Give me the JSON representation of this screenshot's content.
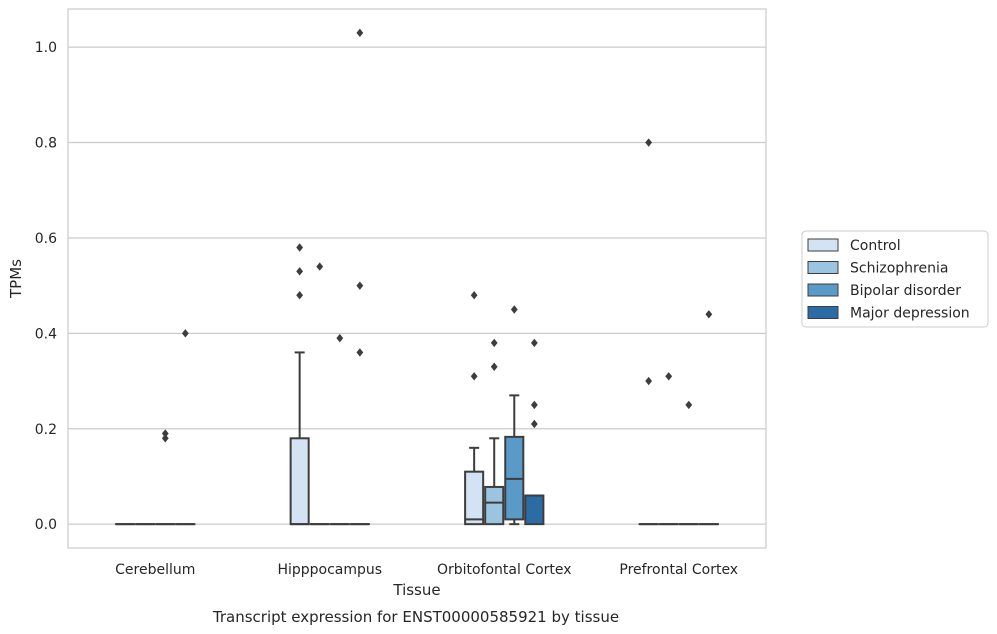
{
  "chart_data": {
    "type": "box",
    "caption": "Transcript expression for ENST00000585921 by tissue",
    "xlabel": "Tissue",
    "ylabel": "TPMs",
    "ylim": [
      -0.05,
      1.08
    ],
    "yticks": [
      0.0,
      0.2,
      0.4,
      0.6,
      0.8,
      1.0
    ],
    "ytick_labels": [
      "0.0",
      "0.2",
      "0.4",
      "0.6",
      "0.8",
      "1.0"
    ],
    "grid": "horizontal",
    "legend_position": "right",
    "categories": [
      "Cerebellum",
      "Hipppocampus",
      "Orbitofontal Cortex",
      "Prefrontal Cortex"
    ],
    "series": [
      {
        "name": "Control",
        "color": "#d4e3f3",
        "boxes": [
          {
            "category": "Cerebellum",
            "q1": 0.0,
            "median": 0.0,
            "q3": 0.0,
            "whislo": 0.0,
            "whishi": 0.0,
            "fliers": []
          },
          {
            "category": "Hipppocampus",
            "q1": 0.0,
            "median": 0.0,
            "q3": 0.18,
            "whislo": 0.0,
            "whishi": 0.36,
            "fliers": [
              0.58,
              0.53,
              0.48
            ]
          },
          {
            "category": "Orbitofontal Cortex",
            "q1": 0.0,
            "median": 0.01,
            "q3": 0.11,
            "whislo": 0.0,
            "whishi": 0.16,
            "fliers": [
              0.48,
              0.31
            ]
          },
          {
            "category": "Prefrontal Cortex",
            "q1": 0.0,
            "median": 0.0,
            "q3": 0.0,
            "whislo": 0.0,
            "whishi": 0.0,
            "fliers": [
              0.8,
              0.3
            ]
          }
        ]
      },
      {
        "name": "Schizophrenia",
        "color": "#9bc4e1",
        "boxes": [
          {
            "category": "Cerebellum",
            "q1": 0.0,
            "median": 0.0,
            "q3": 0.0,
            "whislo": 0.0,
            "whishi": 0.0,
            "fliers": []
          },
          {
            "category": "Hipppocampus",
            "q1": 0.0,
            "median": 0.0,
            "q3": 0.0,
            "whislo": 0.0,
            "whishi": 0.0,
            "fliers": [
              0.54
            ]
          },
          {
            "category": "Orbitofontal Cortex",
            "q1": 0.0,
            "median": 0.045,
            "q3": 0.078,
            "whislo": 0.0,
            "whishi": 0.18,
            "fliers": [
              0.38,
              0.33
            ]
          },
          {
            "category": "Prefrontal Cortex",
            "q1": 0.0,
            "median": 0.0,
            "q3": 0.0,
            "whislo": 0.0,
            "whishi": 0.0,
            "fliers": [
              0.31
            ]
          }
        ]
      },
      {
        "name": "Bipolar disorder",
        "color": "#5a9ac9",
        "boxes": [
          {
            "category": "Cerebellum",
            "q1": 0.0,
            "median": 0.0,
            "q3": 0.0,
            "whislo": 0.0,
            "whishi": 0.0,
            "fliers": [
              0.19,
              0.18
            ]
          },
          {
            "category": "Hipppocampus",
            "q1": 0.0,
            "median": 0.0,
            "q3": 0.0,
            "whislo": 0.0,
            "whishi": 0.0,
            "fliers": [
              0.39
            ]
          },
          {
            "category": "Orbitofontal Cortex",
            "q1": 0.01,
            "median": 0.095,
            "q3": 0.183,
            "whislo": 0.0,
            "whishi": 0.27,
            "fliers": [
              0.45
            ]
          },
          {
            "category": "Prefrontal Cortex",
            "q1": 0.0,
            "median": 0.0,
            "q3": 0.0,
            "whislo": 0.0,
            "whishi": 0.0,
            "fliers": [
              0.25
            ]
          }
        ]
      },
      {
        "name": "Major depression",
        "color": "#2b6ca7",
        "boxes": [
          {
            "category": "Cerebellum",
            "q1": 0.0,
            "median": 0.0,
            "q3": 0.0,
            "whislo": 0.0,
            "whishi": 0.0,
            "fliers": [
              0.4
            ]
          },
          {
            "category": "Hipppocampus",
            "q1": 0.0,
            "median": 0.0,
            "q3": 0.0,
            "whislo": 0.0,
            "whishi": 0.0,
            "fliers": [
              1.03,
              0.5,
              0.36
            ]
          },
          {
            "category": "Orbitofontal Cortex",
            "q1": 0.0,
            "median": 0.06,
            "q3": 0.06,
            "whislo": 0.0,
            "whishi": 0.06,
            "fliers": [
              0.38,
              0.25,
              0.21
            ]
          },
          {
            "category": "Prefrontal Cortex",
            "q1": 0.0,
            "median": 0.0,
            "q3": 0.0,
            "whislo": 0.0,
            "whishi": 0.0,
            "fliers": [
              0.44
            ]
          }
        ]
      }
    ]
  }
}
